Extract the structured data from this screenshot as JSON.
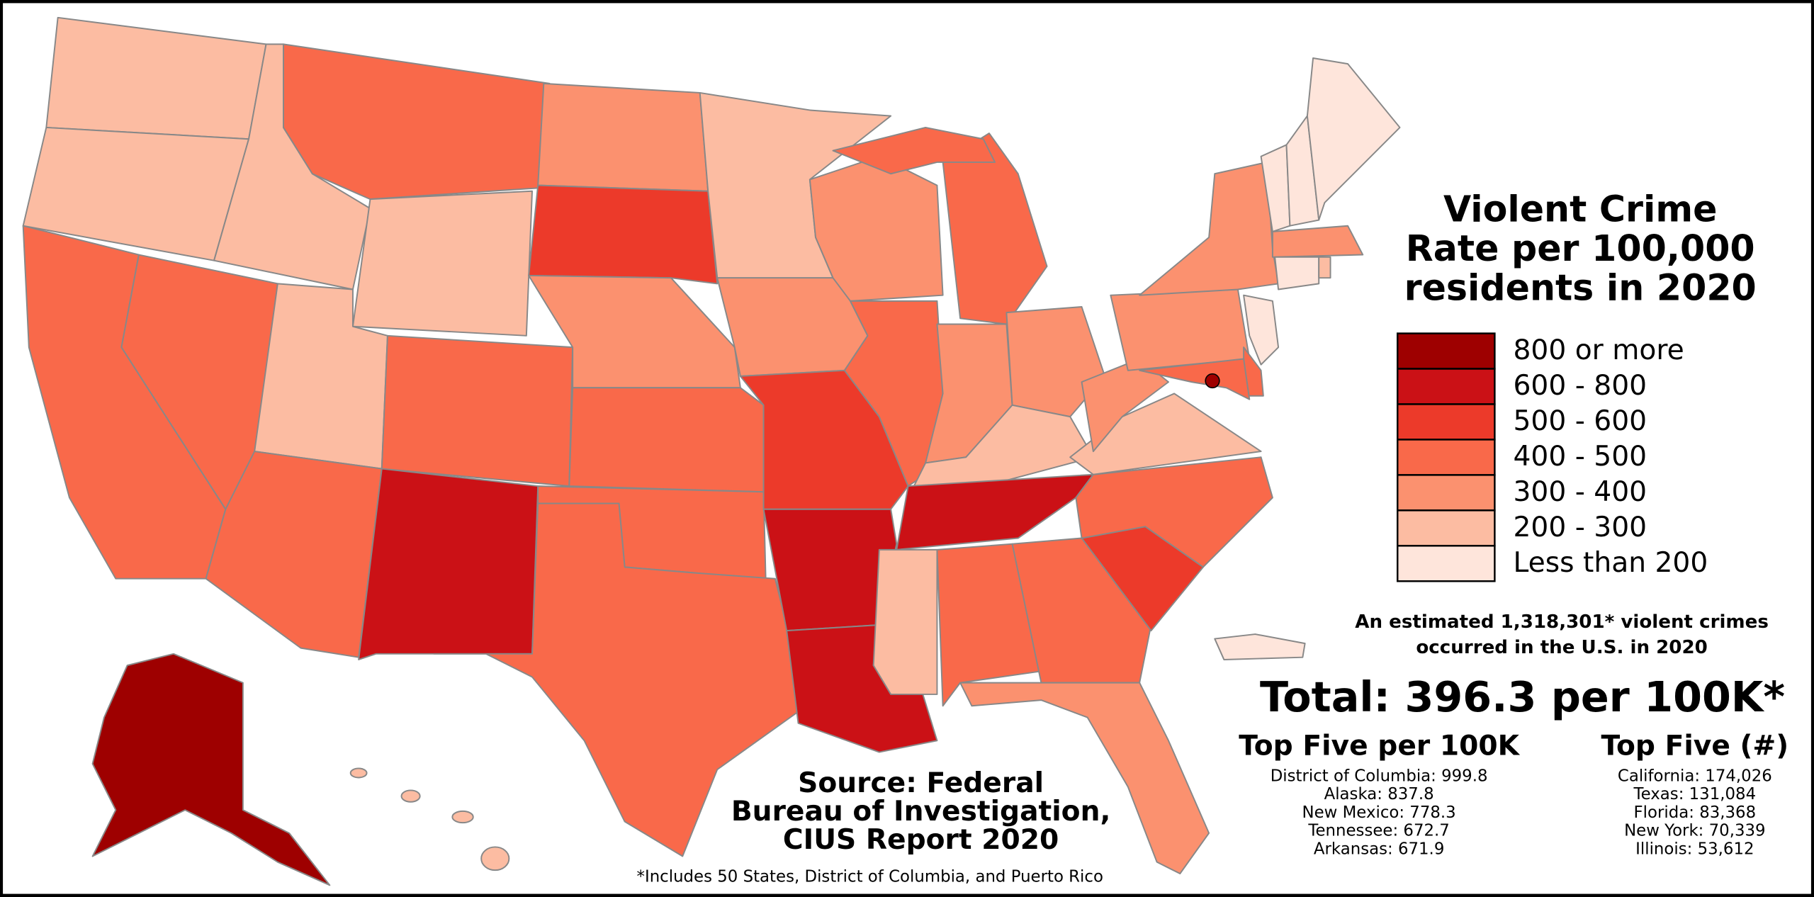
{
  "title_lines": [
    "Violent Crime",
    "Rate per 100,000",
    "residents in 2020"
  ],
  "legend": [
    {
      "label": "800 or more",
      "color": "#9e0000"
    },
    {
      "label": "600 - 800",
      "color": "#cb1116"
    },
    {
      "label": "500 - 600",
      "color": "#ec3a2a"
    },
    {
      "label": "400 - 500",
      "color": "#f9694a"
    },
    {
      "label": "300 - 400",
      "color": "#fb916f"
    },
    {
      "label": "200 - 300",
      "color": "#fcbca2"
    },
    {
      "label": "Less than 200",
      "color": "#fee5db"
    }
  ],
  "note_lines": [
    "An estimated 1,318,301* violent crimes",
    "occurred in the U.S. in 2020"
  ],
  "total": "Total: 396.3 per 100K*",
  "top_rate": {
    "title": "Top Five per 100K",
    "items": [
      "District of Columbia: 999.8",
      "Alaska: 837.8",
      "New Mexico: 778.3",
      "Tennessee: 672.7",
      "Arkansas: 671.9"
    ]
  },
  "top_count": {
    "title": "Top Five (#)",
    "items": [
      "California: 174,026",
      "Texas: 131,084",
      "Florida: 83,368",
      "New York: 70,339",
      "Illinois: 53,612"
    ]
  },
  "source_lines": [
    "Source: Federal",
    "Bureau of Investigation,",
    "CIUS Report 2020"
  ],
  "footnote": "*Includes 50 States, District of Columbia, and Puerto Rico"
}
